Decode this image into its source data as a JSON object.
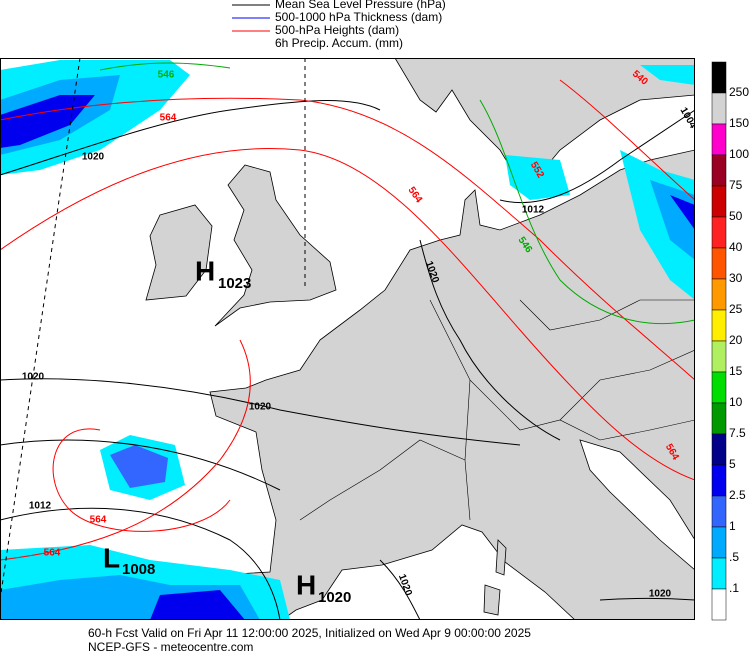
{
  "legend": {
    "items": [
      {
        "label": "Mean Sea Level Pressure (hPa)",
        "color": "#000000"
      },
      {
        "label": "500-1000 hPa Thickness (dam)",
        "color": "#0000ff"
      },
      {
        "label": "500-hPa Heights (dam)",
        "color": "#ff0000"
      }
    ],
    "note": "6h Precip. Accum. (mm)"
  },
  "colorbar": {
    "labels": [
      "250",
      "150",
      "100",
      "75",
      "50",
      "40",
      "30",
      "25",
      "20",
      "15",
      "10",
      "7.5",
      "5",
      "2.5",
      "1",
      ".5",
      ".1"
    ],
    "colors": [
      "#000000",
      "#d3d3d3",
      "#ff00cc",
      "#990022",
      "#cc0000",
      "#ff2222",
      "#ff5500",
      "#ff9900",
      "#ffee00",
      "#b0f060",
      "#00dd00",
      "#009900",
      "#000088",
      "#0000ee",
      "#3366ff",
      "#00aaff",
      "#00eeff",
      "#ffffff"
    ]
  },
  "pressure_centers": [
    {
      "letter": "H",
      "value": "1023"
    },
    {
      "letter": "L",
      "value": "1008"
    },
    {
      "letter": "H",
      "value": "1020"
    }
  ],
  "contour_labels": {
    "pressure": [
      "1020",
      "1020",
      "1020",
      "1020",
      "1012",
      "1012",
      "1020",
      "1004",
      "1020"
    ],
    "heights": [
      "564",
      "564",
      "564",
      "564",
      "540",
      "552",
      "564"
    ],
    "thickness": [
      "546",
      "546"
    ]
  },
  "footer": {
    "line1": "60-h Fcst Valid on Fri Apr 11 12:00:00 2025, Initialized on Wed Apr  9 00:00:00 2025",
    "line2": "NCEP-GFS - meteocentre.com"
  }
}
